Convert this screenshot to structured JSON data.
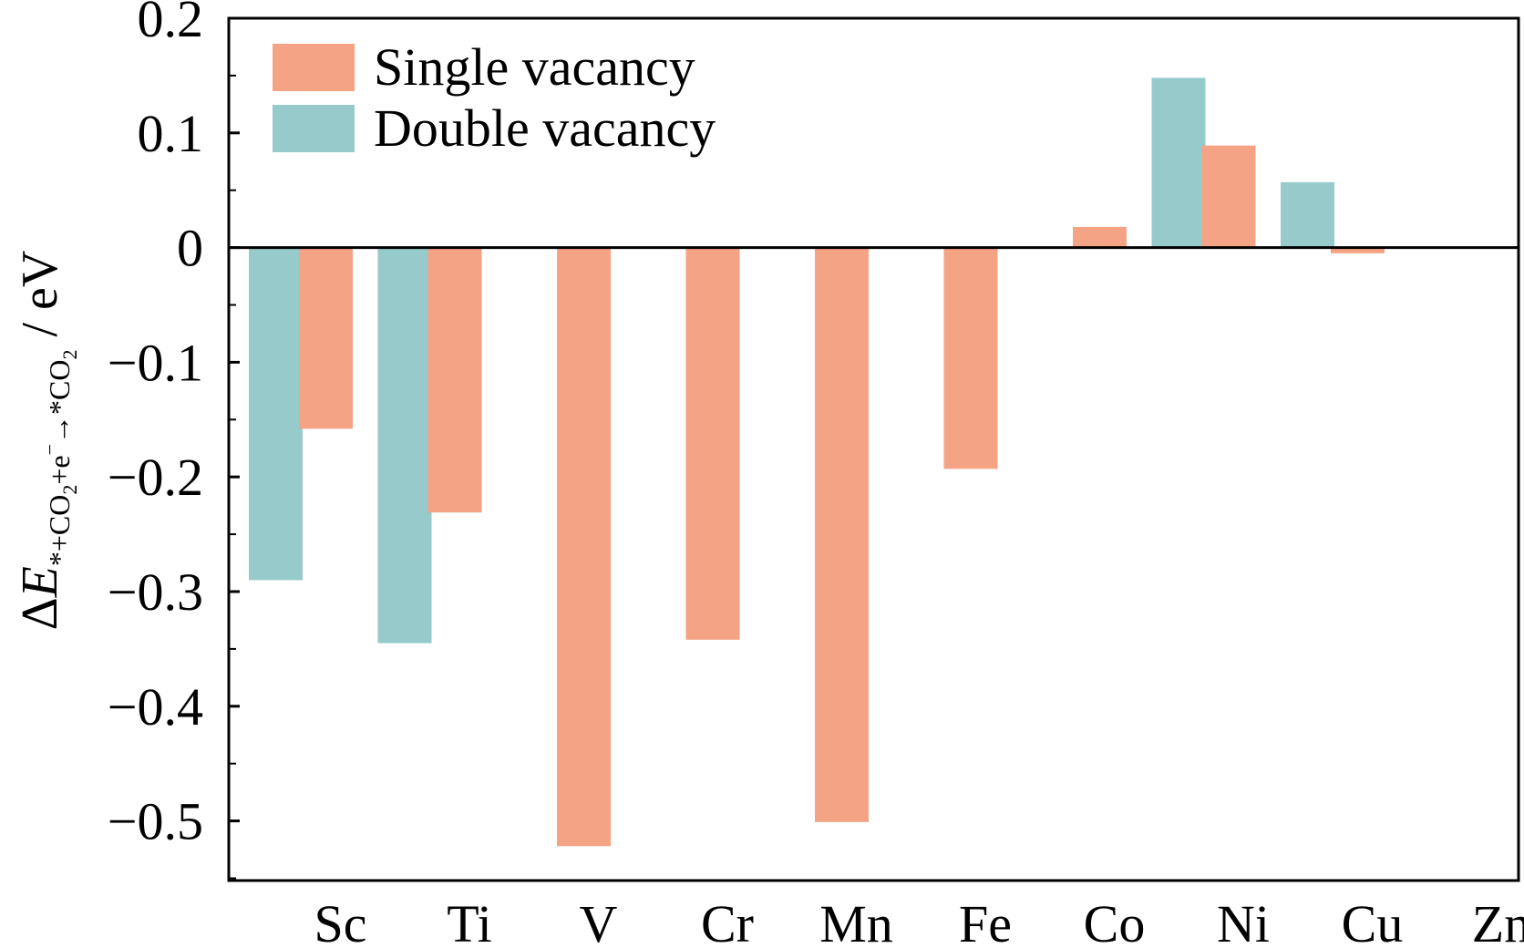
{
  "chart_data": {
    "type": "bar",
    "categories": [
      "Sc",
      "Ti",
      "V",
      "Cr",
      "Mn",
      "Fe",
      "Co",
      "Ni",
      "Cu",
      "Zn"
    ],
    "series": [
      {
        "name": "Double vacancy",
        "color": "#96CACB",
        "values": [
          -0.29,
          -0.345,
          null,
          null,
          null,
          null,
          null,
          0.148,
          0.057,
          null
        ]
      },
      {
        "name": "Single vacancy",
        "color": "#F4A384",
        "values": [
          -0.158,
          -0.231,
          -0.522,
          -0.342,
          -0.501,
          -0.193,
          0.018,
          0.089,
          -0.005,
          null
        ]
      }
    ],
    "ylim": [
      -0.552,
      0.2
    ],
    "yticks": [
      "0.2",
      "0.1",
      "0",
      "−0.1",
      "−0.2",
      "−0.3",
      "−0.4",
      "−0.5"
    ],
    "ytick_values": [
      0.2,
      0.1,
      0,
      -0.1,
      -0.2,
      -0.3,
      -0.4,
      -0.5
    ],
    "ylabel": {
      "prefix": "Δ",
      "symbol": "E",
      "sub_a": "*+CO",
      "sub_a2": "2",
      "sub_b": "+e",
      "sub_b_sup": "−",
      "sub_c": "→*CO",
      "sub_c2": "2",
      "suffix": " / eV"
    },
    "xlabel": "",
    "legend": {
      "position": "top-left",
      "entries": [
        "Single vacancy",
        "Double vacancy"
      ]
    },
    "grid": false,
    "zero_line": true
  }
}
